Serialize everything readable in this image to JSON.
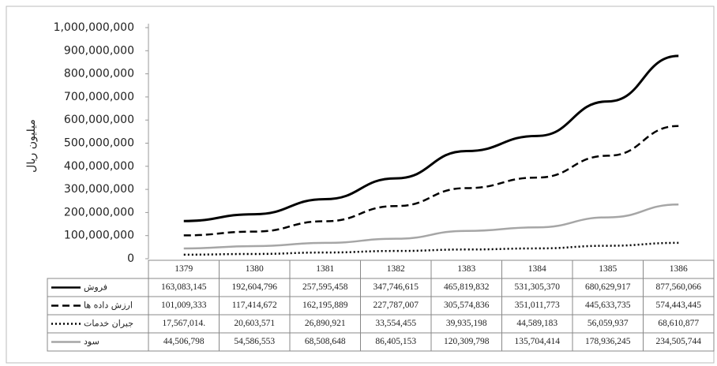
{
  "chart_data": {
    "type": "line",
    "y_label": "میلیون ریال",
    "categories": [
      "1379",
      "1380",
      "1381",
      "1382",
      "1383",
      "1384",
      "1385",
      "1386"
    ],
    "series": [
      {
        "name": "فروش",
        "color": "#000000",
        "style": "solid",
        "values": [
          163083145,
          192604796,
          257595458,
          347746615,
          465819832,
          531305370,
          680629917,
          877560066
        ],
        "value_labels": [
          "163,083,145",
          "192,604,796",
          "257,595,458",
          "347,746,615",
          "465,819,832",
          "531,305,370",
          "680,629,917",
          "877,560,066"
        ]
      },
      {
        "name": "ارزش داده ها",
        "color": "#000000",
        "style": "dashed",
        "values": [
          101009333,
          117414672,
          162195889,
          227787007,
          305574836,
          351011773,
          445633735,
          574443445
        ],
        "value_labels": [
          "101,009,333",
          "117,414,672",
          "162,195,889",
          "227,787,007",
          "305,574,836",
          "351,011,773",
          "445,633,735",
          "574,443,445"
        ]
      },
      {
        "name": "جبران خدمات",
        "color": "#000000",
        "style": "dotted",
        "values": [
          17567014,
          20603571,
          26890921,
          33554455,
          39935198,
          44589183,
          56059937,
          68610877
        ],
        "value_labels": [
          "17,567,014.",
          "20,603,571",
          "26,890,921",
          "33,554,455",
          "39,935,198",
          "44,589,183",
          "56,059,937",
          "68,610,877"
        ]
      },
      {
        "name": "سود",
        "color": "#a6a6a6",
        "style": "solid",
        "values": [
          44506798,
          54586553,
          68508648,
          86405153,
          120309798,
          135704414,
          178936245,
          234505744
        ],
        "value_labels": [
          "44,506,798",
          "54,586,553",
          "68,508,648",
          "86,405,153",
          "120,309,798",
          "135,704,414",
          "178,936,245",
          "234,505,744"
        ]
      }
    ],
    "ylim": [
      0,
      1000000000
    ],
    "yticks": [
      0,
      {
        "value": 100000000,
        "label": "100,000,000"
      },
      {
        "value": 200000000,
        "label": "200,000,000"
      },
      {
        "value": 300000000,
        "label": "300,000,000"
      },
      {
        "value": 400000000,
        "label": "400,000,000"
      },
      {
        "value": 500000000,
        "label": "500,000,000"
      },
      {
        "value": 600000000,
        "label": "600,000,000"
      },
      {
        "value": 700000000,
        "label": "700,000,000"
      },
      {
        "value": 800000000,
        "label": "800,000,000"
      },
      {
        "value": 900000000,
        "label": "900,000,000"
      },
      {
        "value": 1000000000,
        "label": "1,000,000,000"
      }
    ],
    "grid": false
  }
}
